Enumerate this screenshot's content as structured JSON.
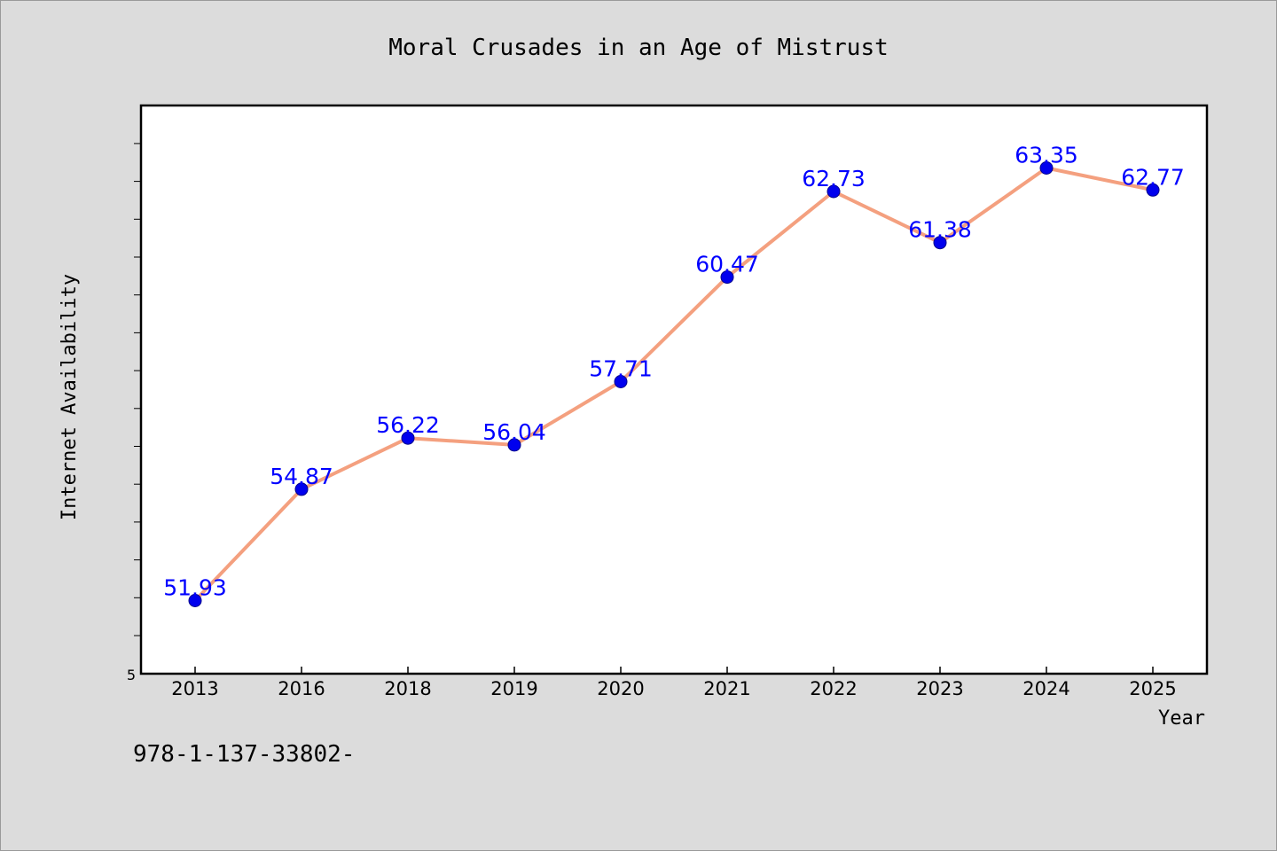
{
  "chart_data": {
    "type": "line",
    "title": "Moral Crusades in an Age of Mistrust",
    "xlabel": "Year",
    "ylabel": "Internet Availability",
    "categories": [
      "2013",
      "2016",
      "2018",
      "2019",
      "2020",
      "2021",
      "2022",
      "2023",
      "2024",
      "2025"
    ],
    "series": [
      {
        "values": [
          51.93,
          54.87,
          56.22,
          56.04,
          57.71,
          60.47,
          62.73,
          61.38,
          63.35,
          62.77
        ],
        "labels": [
          "51.93",
          "54.87",
          "56.22",
          "56.04",
          "57.71",
          "60.47",
          "62.73",
          "61.38",
          "63.35",
          "62.77"
        ]
      }
    ],
    "ylim": [
      50,
      65
    ],
    "y_tick_label": "5",
    "grid": false,
    "colors": {
      "line": "#f4a07f",
      "marker": "#0000ee",
      "label": "#0000ff",
      "plot_bg": "#ffffff",
      "page_bg": "#dcdcdc"
    }
  },
  "footer_text": "978-1-137-33802-"
}
